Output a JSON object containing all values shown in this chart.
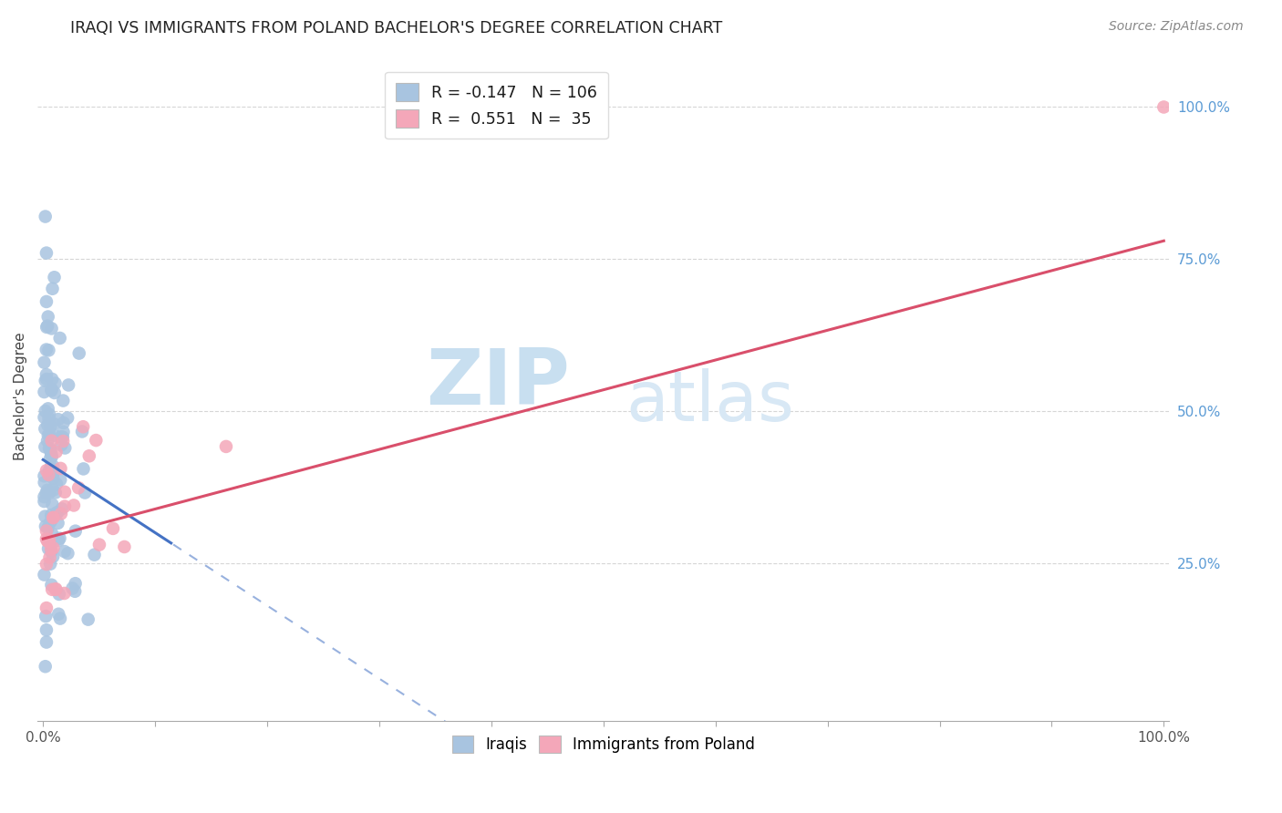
{
  "title": "IRAQI VS IMMIGRANTS FROM POLAND BACHELOR'S DEGREE CORRELATION CHART",
  "source": "Source: ZipAtlas.com",
  "ylabel": "Bachelor's Degree",
  "legend_label1": "Iraqis",
  "legend_label2": "Immigrants from Poland",
  "r1": "-0.147",
  "n1": "106",
  "r2": "0.551",
  "n2": "35",
  "iraqis_color": "#a8c4e0",
  "poland_color": "#f4a7b9",
  "line1_color": "#4472c4",
  "line2_color": "#d94f6b",
  "watermark_zip": "ZIP",
  "watermark_atlas": "atlas",
  "watermark_color": "#ddeeff",
  "grid_color": "#cccccc",
  "right_tick_color": "#5b9bd5",
  "title_fontsize": 12.5,
  "source_fontsize": 10
}
